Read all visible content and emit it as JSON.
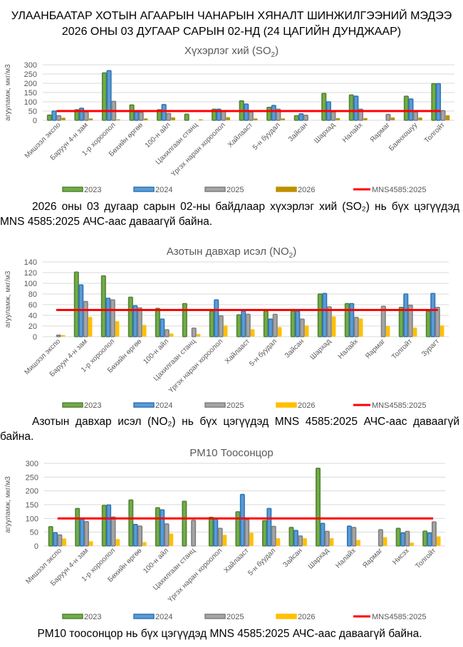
{
  "header": {
    "line1": "УЛААНБААТАР ХОТЫН АГААРЫН ЧАНАРЫН ХЯНАЛТ ШИНЖИЛГЭЭНИЙ МЭДЭЭ",
    "line2": "2026 ОНЫ 03 ДУГААР САРЫН 02-НД (24 ЦАГИЙН ДУНДЖААР)"
  },
  "colors": {
    "s2023": "#548235",
    "s2023_light": "#70ad47",
    "s2024": "#2e75b6",
    "s2024_light": "#5b9bd5",
    "s2025": "#7f7f7f",
    "s2025_light": "#a5a5a5",
    "s2026": "#ffc000",
    "s2026_so2": "#bf9000",
    "limit": "#ff0000",
    "grid": "#d9d9d9",
    "axis_text": "#595959"
  },
  "paragraphs": {
    "so2": "2026 оны 03 дугаар сарын 02-ны байдлаар хүхэрлэг хий (SO₂) нь бүх цэгүүдэд MNS 4585:2025 АЧС-аас даваагүй байна.",
    "no2": "Азотын давхар исэл (NO₂) нь бүх цэгүүдэд MNS 4585:2025 АЧС-аас даваагүй байна.",
    "pm10": "PM10 тоосонцор нь бүх цэгүүдэд MNS 4585:2025 АЧС-аас даваагүй байна."
  },
  "chart_data": [
    {
      "id": "so2",
      "type": "bar",
      "title": "Хүхэрлэг хий (SO2)",
      "title_main": "Хүхэрлэг хий (SO",
      "title_sub": "2",
      "title_end": ")",
      "ylabel": "агууламж, мкг/м3",
      "xlabel": "",
      "ylim": [
        0,
        300
      ],
      "yticks": [
        0,
        50,
        100,
        150,
        200,
        250,
        300
      ],
      "grid": true,
      "legend_position": "bottom",
      "limit": {
        "name": "MNS4585:2025",
        "value": 50
      },
      "categories": [
        "Мишээл экспо",
        "Баруун 4-н зам",
        "1-р хороолол",
        "Бөхийн өргөө",
        "100-н айл",
        "Цахилгаан станц",
        "Үргэх наран хороолол",
        "Хайлааст",
        "5-н буудал",
        "Зайсан",
        "Шархад",
        "Налайх",
        "Яармаг",
        "Баянхошуу",
        "Толгойт"
      ],
      "series": [
        {
          "name": "2023",
          "values": [
            28,
            57,
            256,
            83,
            57,
            33,
            60,
            105,
            70,
            25,
            145,
            137,
            null,
            130,
            198
          ]
        },
        {
          "name": "2024",
          "values": [
            50,
            65,
            268,
            45,
            85,
            null,
            60,
            88,
            80,
            35,
            100,
            130,
            null,
            115,
            198
          ]
        },
        {
          "name": "2025",
          "values": [
            25,
            45,
            102,
            42,
            37,
            null,
            50,
            45,
            60,
            27,
            45,
            60,
            32,
            45,
            52
          ]
        },
        {
          "name": "2026",
          "values": [
            14,
            10,
            5,
            10,
            16,
            5,
            17,
            10,
            10,
            null,
            12,
            12,
            15,
            15,
            27
          ]
        }
      ]
    },
    {
      "id": "no2",
      "type": "bar",
      "title": "Азотын давхар исэл (NO2)",
      "title_main": "Азотын давхар исэл (NO",
      "title_sub": "2",
      "title_end": ")",
      "ylabel": "агууламж, мкг/м3",
      "xlabel": "",
      "ylim": [
        0,
        140
      ],
      "yticks": [
        0,
        20,
        40,
        60,
        80,
        100,
        120,
        140
      ],
      "grid": true,
      "legend_position": "bottom",
      "limit": {
        "name": "MNS4585:2025",
        "value": 50
      },
      "categories": [
        "Мишээл экспо",
        "Баруун 4-н зам",
        "1-р хороолол",
        "Бөхийн өргөө",
        "100-н айл",
        "Цахилгаан станц",
        "Үргэх наран хороолол",
        "Хайлааст",
        "5-н буудал",
        "Зайсан",
        "Шархад",
        "Налайх",
        "Яармаг",
        "Толгойт",
        "Зурагт"
      ],
      "series": [
        {
          "name": "2023",
          "values": [
            null,
            121,
            114,
            74,
            53,
            62,
            48,
            41,
            48,
            48,
            80,
            62,
            null,
            55,
            48
          ]
        },
        {
          "name": "2024",
          "values": [
            null,
            97,
            72,
            58,
            33,
            null,
            69,
            48,
            33,
            48,
            81,
            62,
            null,
            80,
            81
          ]
        },
        {
          "name": "2025",
          "values": [
            3,
            66,
            69,
            54,
            13,
            16,
            39,
            42,
            42,
            33,
            56,
            36,
            57,
            59,
            55
          ]
        },
        {
          "name": "2026",
          "values": [
            3,
            37,
            29,
            22,
            6,
            5,
            21,
            14,
            18,
            21,
            38,
            34,
            20,
            17,
            21
          ]
        }
      ]
    },
    {
      "id": "pm10",
      "type": "bar",
      "title": "PM10 Тоосонцор",
      "title_main": "PM10 Тоосонцор",
      "title_sub": "",
      "title_end": "",
      "ylabel": "агууламж, мкг/м3",
      "xlabel": "",
      "ylim": [
        0,
        300
      ],
      "yticks": [
        0,
        50,
        100,
        150,
        200,
        250,
        300
      ],
      "grid": true,
      "legend_position": "bottom",
      "limit": {
        "name": "MNS4585:2025",
        "value": 100
      },
      "categories": [
        "Мишээл экспо",
        "Баруун 4-н зам",
        "1-р хороолол",
        "Бөхийн өргөө",
        "100-н айл",
        "Цахилгаан станц",
        "Үргэх наран хороолол",
        "Хайлааст",
        "5-н буудал",
        "Зайсан",
        "Шархад",
        "Налайх",
        "Яармаг",
        "Нисэх",
        "Толгойт"
      ],
      "series": [
        {
          "name": "2023",
          "values": [
            70,
            136,
            147,
            167,
            139,
            162,
            104,
            124,
            92,
            67,
            282,
            null,
            null,
            64,
            54
          ]
        },
        {
          "name": "2024",
          "values": [
            48,
            97,
            149,
            78,
            131,
            null,
            98,
            187,
            136,
            56,
            82,
            72,
            null,
            47,
            47
          ]
        },
        {
          "name": "2025",
          "values": [
            40,
            88,
            105,
            72,
            80,
            93,
            64,
            95,
            71,
            36,
            53,
            67,
            59,
            53,
            87
          ]
        },
        {
          "name": "2026",
          "values": [
            27,
            17,
            25,
            14,
            45,
            null,
            40,
            48,
            28,
            28,
            28,
            22,
            32,
            12,
            35
          ]
        }
      ]
    }
  ]
}
